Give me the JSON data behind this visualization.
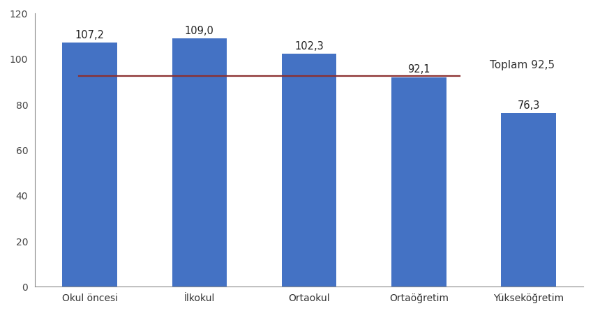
{
  "categories": [
    "Okul öncesi",
    "İlkokul",
    "Ortaokul",
    "Ortaöğretim",
    "Yükseköğretim"
  ],
  "values": [
    107.2,
    109.0,
    102.3,
    92.1,
    76.3
  ],
  "bar_color": "#4472C4",
  "reference_line_value": 92.5,
  "reference_line_color": "#8B3030",
  "reference_line_label": "Toplam 92,5",
  "value_labels": [
    "107,2",
    "109,0",
    "102,3",
    "92,1",
    "76,3"
  ],
  "ylim": [
    0,
    120
  ],
  "yticks": [
    0,
    20,
    40,
    60,
    80,
    100,
    120
  ],
  "background_color": "#ffffff",
  "bar_width": 0.5,
  "label_fontsize": 10.5,
  "tick_fontsize": 10,
  "ref_label_fontsize": 11
}
